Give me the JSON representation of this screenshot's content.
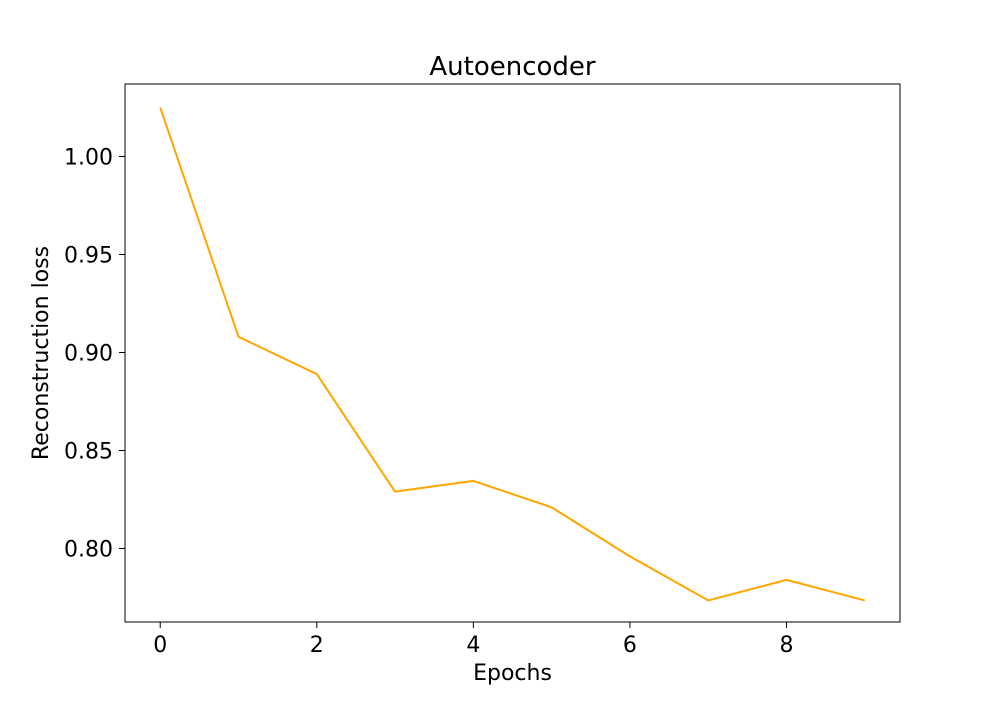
{
  "chart_data": {
    "type": "line",
    "title": "Autoencoder",
    "xlabel": "Epochs",
    "ylabel": "Reconstruction loss",
    "xlim": [
      -0.45,
      9.45
    ],
    "ylim": [
      0.7625,
      1.037
    ],
    "xticks": [
      0,
      2,
      4,
      6,
      8
    ],
    "xtick_labels": [
      "0",
      "2",
      "4",
      "6",
      "8"
    ],
    "yticks": [
      0.8,
      0.85,
      0.9,
      0.95,
      1.0
    ],
    "ytick_labels": [
      "0.80",
      "0.85",
      "0.90",
      "0.95",
      "1.00"
    ],
    "grid": false,
    "legend": "none",
    "series": [
      {
        "color": "#ffa500",
        "x": [
          0,
          1,
          2,
          3,
          4,
          5,
          6,
          7,
          8,
          9
        ],
        "y": [
          1.025,
          0.908,
          0.889,
          0.829,
          0.8345,
          0.821,
          0.796,
          0.7735,
          0.784,
          0.7735
        ]
      }
    ]
  }
}
